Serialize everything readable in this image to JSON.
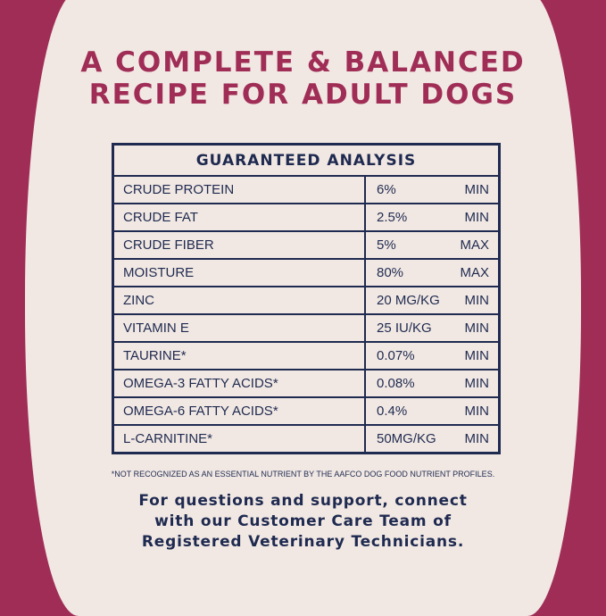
{
  "title_lines": [
    "A COMPLETE & BALANCED",
    "RECIPE FOR ADULT DOGS"
  ],
  "table": {
    "heading": "GUARANTEED ANALYSIS",
    "rows": [
      {
        "name": "CRUDE PROTEIN",
        "value": "6%",
        "unit": "MIN"
      },
      {
        "name": "CRUDE FAT",
        "value": "2.5%",
        "unit": "MIN"
      },
      {
        "name": "CRUDE FIBER",
        "value": "5%",
        "unit": "MAX"
      },
      {
        "name": "MOISTURE",
        "value": "80%",
        "unit": "MAX"
      },
      {
        "name": "ZINC",
        "value": "20 MG/KG",
        "unit": "MIN"
      },
      {
        "name": "VITAMIN E",
        "value": "25 IU/KG",
        "unit": "MIN"
      },
      {
        "name": "TAURINE*",
        "value": "0.07%",
        "unit": "MIN"
      },
      {
        "name": "OMEGA-3 FATTY ACIDS*",
        "value": "0.08%",
        "unit": "MIN"
      },
      {
        "name": "OMEGA-6 FATTY ACIDS*",
        "value": "0.4%",
        "unit": "MIN"
      },
      {
        "name": "L-CARNITINE*",
        "value": "50MG/KG",
        "unit": "MIN"
      }
    ]
  },
  "footnote": "*NOT RECOGNIZED AS AN ESSENTIAL NUTRIENT BY THE AAFCO DOG FOOD NUTRIENT PROFILES.",
  "support_lines": [
    "For questions and support, connect",
    "with our Customer Care Team of",
    "Registered Veterinary Technicians."
  ],
  "colors": {
    "accent": "#a02d56",
    "navy": "#1f2a50",
    "background": "#f1e8e3"
  }
}
